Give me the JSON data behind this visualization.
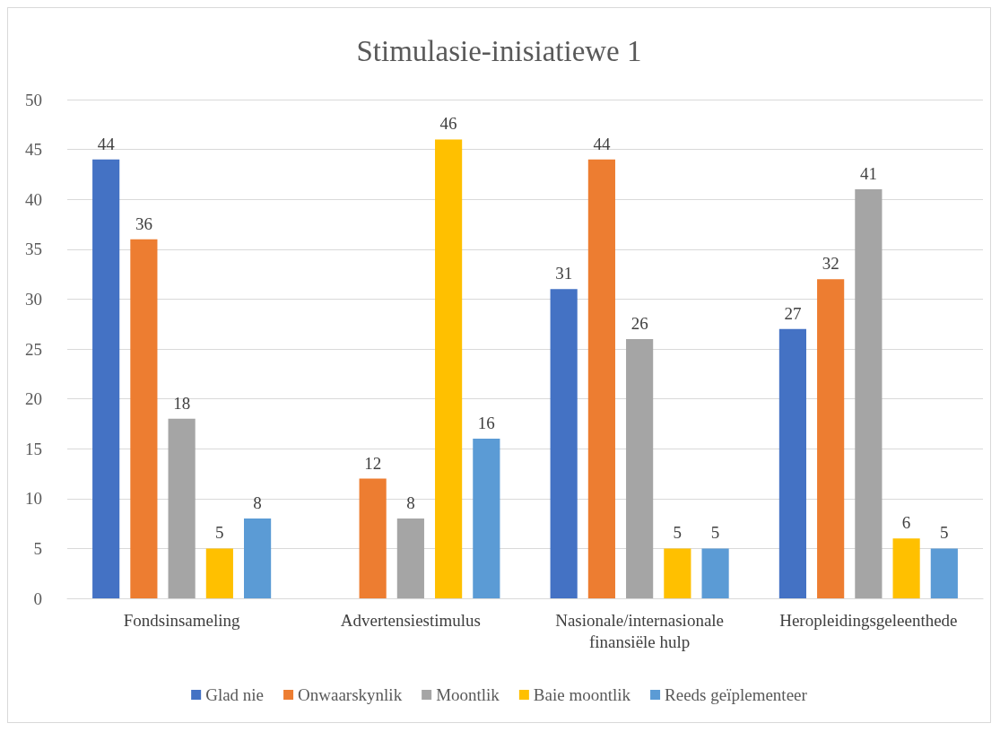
{
  "chart_data": {
    "type": "bar",
    "title": "Stimulasie-inisiatiewe 1",
    "categories": [
      "Fondsinsameling",
      "Advertensiestimulus",
      "Nasionale/internasionale\nfinansiële hulp",
      "Heropleidingsgeleenthede"
    ],
    "series": [
      {
        "name": "Glad nie",
        "color": "#4472c4",
        "values": [
          44,
          null,
          31,
          27
        ]
      },
      {
        "name": "Onwaarskynlik",
        "color": "#ed7d31",
        "values": [
          36,
          12,
          44,
          32
        ]
      },
      {
        "name": "Moontlik",
        "color": "#a5a5a5",
        "values": [
          18,
          8,
          26,
          41
        ]
      },
      {
        "name": "Baie moontlik",
        "color": "#ffc000",
        "values": [
          5,
          46,
          5,
          6
        ]
      },
      {
        "name": "Reeds geïplementeer",
        "color": "#5b9bd5",
        "values": [
          8,
          16,
          5,
          5
        ]
      }
    ],
    "ylim": [
      0,
      50
    ],
    "yticks": [
      0,
      5,
      10,
      15,
      20,
      25,
      30,
      35,
      40,
      45,
      50
    ],
    "grid": "y",
    "legend": "bottom",
    "data_labels": true
  }
}
